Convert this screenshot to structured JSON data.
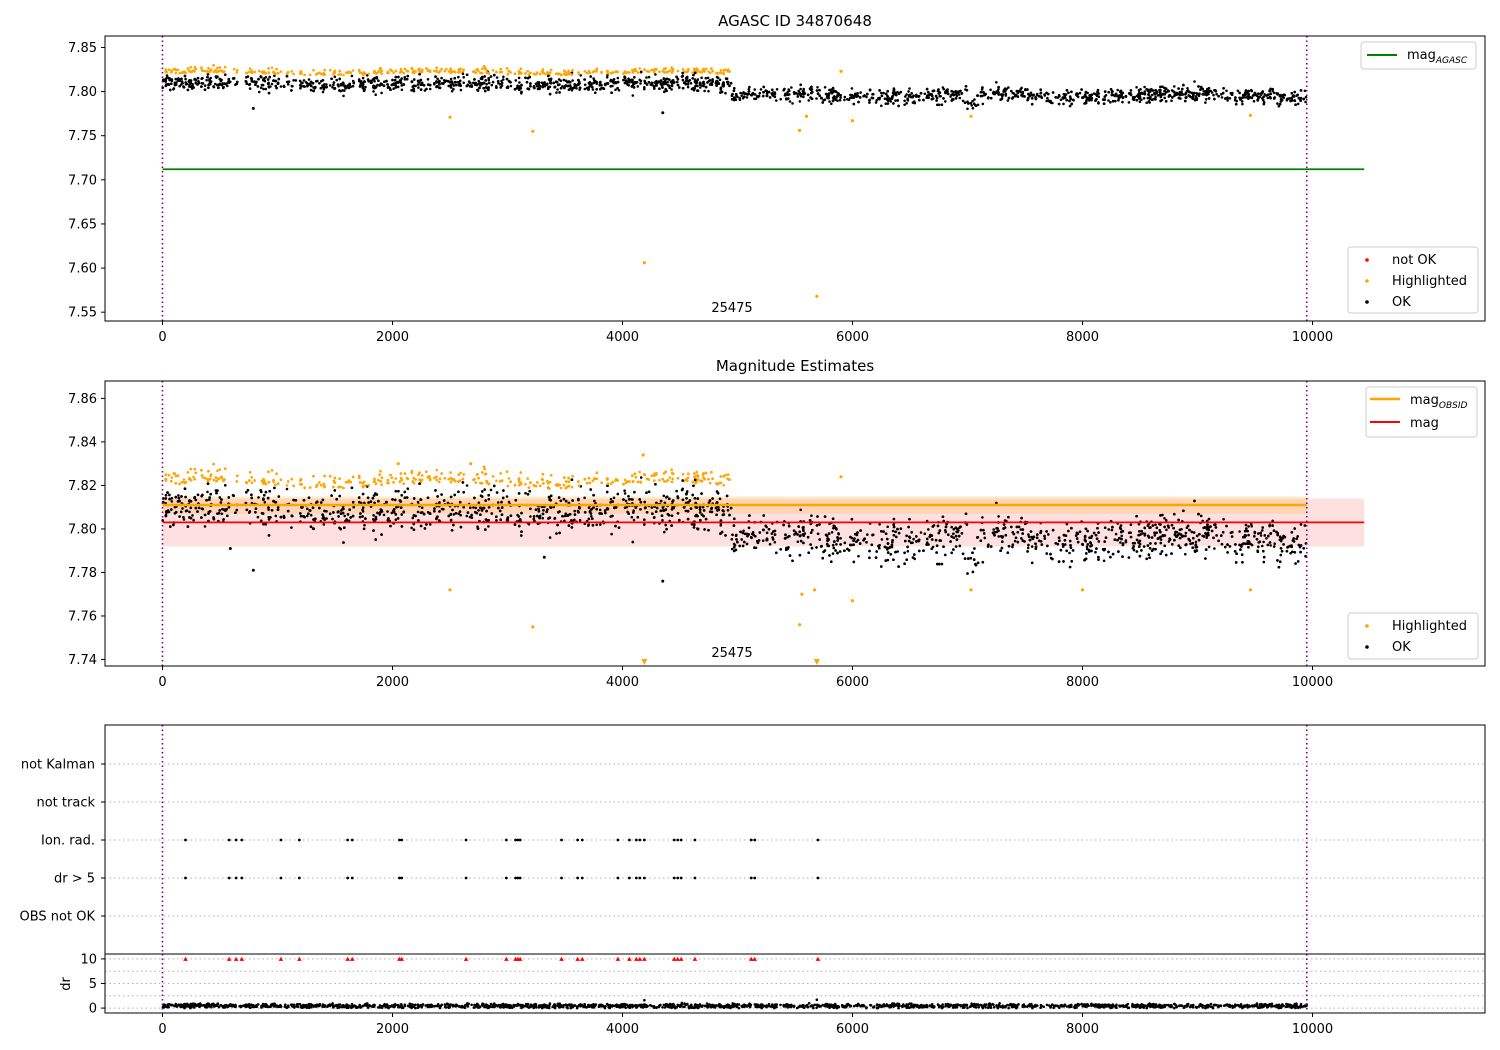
{
  "figure": {
    "panel1_title": "AGASC ID 34870648",
    "panel2_title": "Magnitude Estimates",
    "obsid_label": "25475"
  },
  "colors": {
    "ok": "#000000",
    "highlighted": "#ffa500",
    "not_ok": "#ff0000",
    "mag_agasc": "#008000",
    "mag": "#ff0000",
    "mag_obsid": "#ffa500",
    "obs_boundary": "#800080"
  },
  "chart_data": [
    {
      "type": "scatter",
      "title": "AGASC ID 34870648",
      "xlim": [
        -500,
        11500
      ],
      "ylim": [
        7.54,
        7.863
      ],
      "x_ticks": [
        0,
        2000,
        4000,
        6000,
        8000,
        10000
      ],
      "y_ticks": [
        7.55,
        7.6,
        7.65,
        7.7,
        7.75,
        7.8,
        7.85
      ],
      "y_tick_labels": [
        "7.55",
        "7.60",
        "7.65",
        "7.70",
        "7.75",
        "7.80",
        "7.85"
      ],
      "obs_boundaries": [
        0,
        9950
      ],
      "lines": [
        {
          "name": "mag_AGASC",
          "y": 7.712,
          "x_range": [
            0,
            10450
          ]
        }
      ],
      "series": [
        {
          "name": "not OK",
          "points": []
        },
        {
          "name": "Highlighted",
          "points": [
            [
              2500,
              7.771
            ],
            [
              3220,
              7.755
            ],
            [
              4190,
              7.606
            ],
            [
              5540,
              7.756
            ],
            [
              5690,
              7.568
            ],
            [
              6000,
              7.767
            ],
            [
              7030,
              7.772
            ],
            [
              9460,
              7.773
            ],
            [
              5600,
              7.772
            ],
            [
              5900,
              7.823
            ]
          ]
        },
        {
          "name": "OK",
          "points": [
            [
              790,
              7.781
            ],
            [
              4350,
              7.776
            ]
          ]
        }
      ],
      "legend_lines": [
        "mag",
        "AGASC"
      ],
      "legend_points": [
        "not OK",
        "Highlighted",
        "OK"
      ]
    },
    {
      "type": "scatter",
      "title": "Magnitude Estimates",
      "xlim": [
        -500,
        11500
      ],
      "ylim": [
        7.737,
        7.868
      ],
      "x_ticks": [
        0,
        2000,
        4000,
        6000,
        8000,
        10000
      ],
      "y_ticks": [
        7.74,
        7.76,
        7.78,
        7.8,
        7.82,
        7.84,
        7.86
      ],
      "y_tick_labels": [
        "7.74",
        "7.76",
        "7.78",
        "7.80",
        "7.82",
        "7.84",
        "7.86"
      ],
      "obs_boundaries": [
        0,
        9950
      ],
      "mag": {
        "value": 7.803,
        "band": [
          7.792,
          7.814
        ],
        "x_range": [
          0,
          10450
        ]
      },
      "mag_obsid": {
        "value": 7.811,
        "band": [
          7.807,
          7.815
        ],
        "x_range": [
          0,
          9950
        ]
      },
      "series": [
        {
          "name": "Highlighted",
          "points": [
            [
              2500,
              7.772
            ],
            [
              3220,
              7.755
            ],
            [
              5540,
              7.756
            ],
            [
              5560,
              7.77
            ],
            [
              5670,
              7.772
            ],
            [
              6000,
              7.767
            ],
            [
              7030,
              7.772
            ],
            [
              9460,
              7.772
            ],
            [
              4180,
              7.834
            ],
            [
              2050,
              7.83
            ],
            [
              2680,
              7.83
            ],
            [
              5900,
              7.824
            ],
            [
              8000,
              7.772
            ]
          ]
        },
        {
          "name": "OK",
          "points": [
            [
              790,
              7.781
            ],
            [
              4350,
              7.776
            ],
            [
              3320,
              7.787
            ],
            [
              590,
              7.791
            ]
          ]
        }
      ],
      "markers_below": [
        4190,
        5690
      ],
      "legend_lines": [
        "mag",
        "OBSID",
        "mag"
      ],
      "legend_points": [
        "Highlighted",
        "OK"
      ]
    },
    {
      "type": "scatter",
      "title": "",
      "xlim": [
        -500,
        11500
      ],
      "x_ticks": [
        0,
        2000,
        4000,
        6000,
        8000,
        10000
      ],
      "categories": [
        "not Kalman",
        "not track",
        "Ion. rad.",
        "dr > 5",
        "OBS not OK"
      ],
      "flag_times": [
        200,
        580,
        640,
        690,
        1030,
        1190,
        1610,
        1650,
        2060,
        2080,
        2640,
        2990,
        3070,
        3090,
        3110,
        3470,
        3610,
        3650,
        3960,
        4060,
        4120,
        4150,
        4190,
        4450,
        4480,
        4510,
        4630,
        5120,
        5150,
        5700
      ],
      "flagged_categories": [
        "Ion. rad.",
        "dr > 5"
      ]
    },
    {
      "type": "scatter",
      "title": "",
      "ylabel": "dr",
      "xlim": [
        -500,
        11500
      ],
      "ylim": [
        -1,
        11
      ],
      "y_ticks": [
        0,
        5,
        10
      ],
      "y_tick_labels": [
        "0",
        "5",
        "10"
      ],
      "x_ticks": [
        0,
        2000,
        4000,
        6000,
        8000,
        10000
      ],
      "clipped_value": 10,
      "outliers": [
        [
          4190,
          1.6
        ],
        [
          5690,
          1.7
        ]
      ]
    }
  ]
}
